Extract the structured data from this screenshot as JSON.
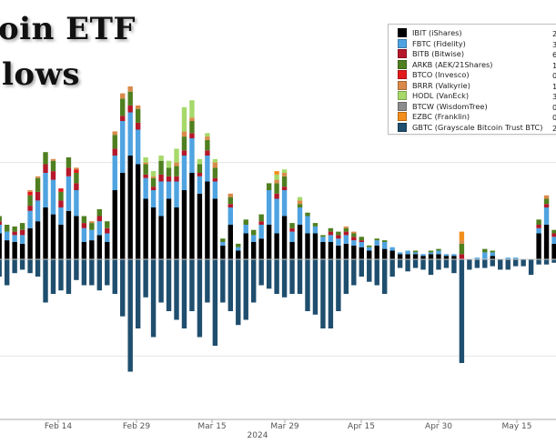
{
  "header": {
    "title_line1": "oin ETF",
    "title_line2": "lows"
  },
  "legend": [
    {
      "label": "IBIT (iShares)",
      "value": "2",
      "color": "#000000"
    },
    {
      "label": "FBTC (Fidelity)",
      "value": "3",
      "color": "#4fa3e0"
    },
    {
      "label": "BITB (Bitwise)",
      "value": "6",
      "color": "#b5172b"
    },
    {
      "label": "ARKB (AEK/21Shares)",
      "value": "1",
      "color": "#4f7f20"
    },
    {
      "label": "BTCO (Invesco)",
      "value": "0",
      "color": "#e31a1c"
    },
    {
      "label": "BRRR (Valkyrie)",
      "value": "1",
      "color": "#d98a4a"
    },
    {
      "label": "HODL (VanEck)",
      "value": "3",
      "color": "#a6d96a"
    },
    {
      "label": "BTCW (WisdomTree)",
      "value": "0",
      "color": "#8c8c8c"
    },
    {
      "label": "EZBC (Franklin)",
      "value": "0",
      "color": "#f28e1c"
    },
    {
      "label": "GBTC (Grayscale Bitcoin Trust BTC)",
      "value": "2",
      "color": "#1f4e6e"
    }
  ],
  "x_axis": {
    "ticks": [
      "Feb 14",
      "Feb 29",
      "Mar 15",
      "Mar 29",
      "Apr 15",
      "Apr 30",
      "May 15"
    ],
    "year_label": "2024"
  },
  "chart_data": {
    "type": "bar",
    "stacked": true,
    "title": "",
    "xlabel": "2024",
    "ylabel": "",
    "legend_position": "top-right",
    "grid": true,
    "categories": [
      "2024-02-02",
      "2024-02-05",
      "2024-02-06",
      "2024-02-07",
      "2024-02-08",
      "2024-02-09",
      "2024-02-12",
      "2024-02-13",
      "2024-02-14",
      "2024-02-15",
      "2024-02-16",
      "2024-02-20",
      "2024-02-21",
      "2024-02-22",
      "2024-02-23",
      "2024-02-26",
      "2024-02-27",
      "2024-02-28",
      "2024-02-29",
      "2024-03-01",
      "2024-03-04",
      "2024-03-05",
      "2024-03-06",
      "2024-03-07",
      "2024-03-08",
      "2024-03-11",
      "2024-03-12",
      "2024-03-13",
      "2024-03-14",
      "2024-03-15",
      "2024-03-18",
      "2024-03-19",
      "2024-03-20",
      "2024-03-21",
      "2024-03-22",
      "2024-03-25",
      "2024-03-26",
      "2024-03-27",
      "2024-03-28",
      "2024-04-01",
      "2024-04-02",
      "2024-04-03",
      "2024-04-04",
      "2024-04-05",
      "2024-04-08",
      "2024-04-09",
      "2024-04-10",
      "2024-04-11",
      "2024-04-12",
      "2024-04-15",
      "2024-04-16",
      "2024-04-17",
      "2024-04-18",
      "2024-04-19",
      "2024-04-22",
      "2024-04-23",
      "2024-04-24",
      "2024-04-25",
      "2024-04-26",
      "2024-04-29",
      "2024-04-30",
      "2024-05-01",
      "2024-05-02",
      "2024-05-03",
      "2024-05-06",
      "2024-05-07",
      "2024-05-08",
      "2024-05-09",
      "2024-05-10",
      "2024-05-13",
      "2024-05-14",
      "2024-05-15",
      "2024-05-16",
      "2024-05-17",
      "2024-05-20"
    ],
    "series": [
      {
        "name": "IBIT (iShares)",
        "values": [
          150,
          110,
          100,
          90,
          180,
          220,
          300,
          260,
          200,
          280,
          250,
          100,
          110,
          140,
          100,
          400,
          500,
          600,
          550,
          350,
          300,
          250,
          350,
          300,
          400,
          500,
          380,
          450,
          350,
          80,
          200,
          50,
          150,
          100,
          120,
          200,
          150,
          250,
          100,
          200,
          150,
          150,
          100,
          100,
          80,
          90,
          80,
          70,
          50,
          80,
          60,
          50,
          30,
          30,
          30,
          20,
          30,
          30,
          20,
          20,
          0,
          0,
          0,
          0,
          20,
          0,
          0,
          0,
          0,
          0,
          150,
          200,
          90,
          50,
          30
        ]
      },
      {
        "name": "FBTC (Fidelity)",
        "values": [
          50,
          50,
          40,
          50,
          100,
          120,
          200,
          200,
          100,
          200,
          150,
          80,
          60,
          80,
          50,
          200,
          300,
          250,
          200,
          120,
          100,
          200,
          100,
          150,
          200,
          200,
          100,
          150,
          100,
          20,
          100,
          20,
          50,
          40,
          80,
          200,
          200,
          150,
          60,
          100,
          100,
          40,
          30,
          40,
          40,
          50,
          30,
          30,
          20,
          30,
          40,
          20,
          10,
          20,
          10,
          10,
          10,
          20,
          10,
          10,
          0,
          0,
          10,
          40,
          20,
          0,
          10,
          10,
          0,
          0,
          30,
          100,
          40,
          20,
          10
        ]
      },
      {
        "name": "BITB (Bitwise)",
        "values": [
          20,
          0,
          20,
          30,
          30,
          50,
          50,
          50,
          40,
          50,
          40,
          30,
          0,
          30,
          30,
          40,
          30,
          40,
          40,
          20,
          20,
          40,
          30,
          30,
          30,
          30,
          20,
          30,
          20,
          0,
          20,
          0,
          0,
          0,
          20,
          0,
          30,
          20,
          20,
          0,
          0,
          0,
          0,
          20,
          20,
          20,
          20,
          10,
          0,
          0,
          0,
          0,
          0,
          0,
          0,
          0,
          0,
          0,
          0,
          0,
          30,
          0,
          0,
          0,
          0,
          0,
          0,
          0,
          0,
          0,
          20,
          20,
          20,
          0,
          0
        ]
      },
      {
        "name": "ARKB (AEK/21Shares)",
        "values": [
          30,
          40,
          30,
          40,
          60,
          80,
          70,
          60,
          50,
          60,
          60,
          40,
          40,
          40,
          40,
          80,
          100,
          80,
          80,
          60,
          50,
          80,
          50,
          60,
          80,
          70,
          50,
          60,
          60,
          20,
          40,
          20,
          30,
          30,
          40,
          40,
          60,
          60,
          30,
          20,
          20,
          20,
          10,
          20,
          20,
          20,
          20,
          20,
          10,
          10,
          10,
          0,
          0,
          0,
          10,
          0,
          10,
          10,
          0,
          0,
          60,
          0,
          0,
          20,
          10,
          0,
          0,
          0,
          0,
          0,
          30,
          30,
          20,
          10,
          0
        ]
      },
      {
        "name": "BTCO (Invesco)",
        "values": [
          0,
          0,
          0,
          0,
          20,
          0,
          0,
          0,
          20,
          0,
          20,
          0,
          0,
          0,
          0,
          0,
          0,
          0,
          0,
          0,
          0,
          0,
          0,
          0,
          0,
          0,
          0,
          0,
          0,
          0,
          0,
          0,
          0,
          0,
          0,
          0,
          0,
          0,
          0,
          0,
          0,
          0,
          0,
          0,
          0,
          0,
          0,
          0,
          0,
          0,
          0,
          0,
          0,
          0,
          0,
          0,
          0,
          0,
          0,
          0,
          0,
          0,
          0,
          0,
          0,
          0,
          0,
          0,
          0,
          0,
          0,
          0,
          0,
          0,
          0
        ]
      },
      {
        "name": "BRRR (Valkyrie)",
        "values": [
          0,
          0,
          0,
          0,
          10,
          10,
          0,
          10,
          0,
          0,
          10,
          0,
          10,
          0,
          0,
          20,
          30,
          30,
          20,
          10,
          10,
          0,
          0,
          20,
          30,
          20,
          0,
          20,
          30,
          0,
          20,
          0,
          0,
          0,
          0,
          0,
          20,
          20,
          0,
          20,
          0,
          0,
          0,
          0,
          0,
          10,
          10,
          0,
          0,
          0,
          0,
          0,
          0,
          0,
          0,
          0,
          0,
          0,
          0,
          0,
          20,
          0,
          0,
          0,
          0,
          0,
          0,
          0,
          0,
          0,
          0,
          20,
          0,
          0,
          0
        ]
      },
      {
        "name": "HODL (VanEck)",
        "values": [
          0,
          0,
          0,
          0,
          0,
          0,
          0,
          0,
          0,
          0,
          0,
          0,
          0,
          0,
          0,
          0,
          0,
          0,
          0,
          30,
          30,
          30,
          40,
          80,
          140,
          100,
          30,
          20,
          20,
          0,
          0,
          0,
          0,
          0,
          0,
          0,
          30,
          20,
          0,
          20,
          0,
          0,
          0,
          0,
          0,
          0,
          0,
          0,
          0,
          0,
          0,
          0,
          0,
          0,
          0,
          0,
          0,
          0,
          0,
          0,
          0,
          0,
          0,
          0,
          0,
          0,
          0,
          0,
          0,
          0,
          0,
          0,
          0,
          0,
          0
        ]
      },
      {
        "name": "BTCW (WisdomTree)",
        "values": [
          0,
          0,
          0,
          0,
          0,
          0,
          0,
          0,
          0,
          0,
          0,
          0,
          0,
          0,
          0,
          0,
          0,
          0,
          0,
          0,
          0,
          0,
          0,
          0,
          0,
          0,
          0,
          0,
          0,
          0,
          0,
          0,
          0,
          0,
          0,
          0,
          0,
          0,
          0,
          0,
          0,
          0,
          0,
          0,
          0,
          0,
          0,
          0,
          0,
          0,
          0,
          0,
          0,
          0,
          0,
          0,
          0,
          0,
          0,
          0,
          0,
          0,
          0,
          0,
          0,
          0,
          0,
          0,
          0,
          0,
          0,
          0,
          0,
          0,
          0
        ]
      },
      {
        "name": "EZBC (Franklin)",
        "values": [
          0,
          0,
          0,
          0,
          0,
          0,
          0,
          0,
          0,
          0,
          0,
          0,
          0,
          0,
          0,
          0,
          0,
          0,
          0,
          0,
          0,
          0,
          0,
          0,
          0,
          0,
          0,
          0,
          0,
          0,
          0,
          0,
          0,
          0,
          0,
          0,
          20,
          0,
          0,
          0,
          0,
          0,
          0,
          0,
          0,
          0,
          0,
          0,
          0,
          0,
          0,
          0,
          0,
          0,
          0,
          0,
          0,
          0,
          0,
          0,
          50,
          0,
          0,
          0,
          0,
          0,
          0,
          0,
          0,
          0,
          0,
          0,
          0,
          0,
          0
        ]
      },
      {
        "name": "GBTC (Grayscale Bitcoin Trust BTC)",
        "values": [
          -100,
          -150,
          -80,
          -60,
          -80,
          -100,
          -250,
          -200,
          -180,
          -200,
          -120,
          -150,
          -150,
          -180,
          -150,
          -200,
          -330,
          -650,
          -400,
          -220,
          -450,
          -250,
          -300,
          -350,
          -400,
          -300,
          -450,
          -250,
          -500,
          -250,
          -300,
          -380,
          -350,
          -250,
          -150,
          -170,
          -200,
          -220,
          -200,
          -200,
          -300,
          -320,
          -400,
          -400,
          -300,
          -200,
          -150,
          -100,
          -130,
          -150,
          -200,
          -100,
          -50,
          -70,
          -50,
          -60,
          -90,
          -60,
          -50,
          -80,
          -600,
          -60,
          -50,
          -50,
          -40,
          -60,
          -60,
          -40,
          -40,
          -90,
          -30,
          -30,
          -20,
          -20,
          -10
        ]
      }
    ]
  }
}
